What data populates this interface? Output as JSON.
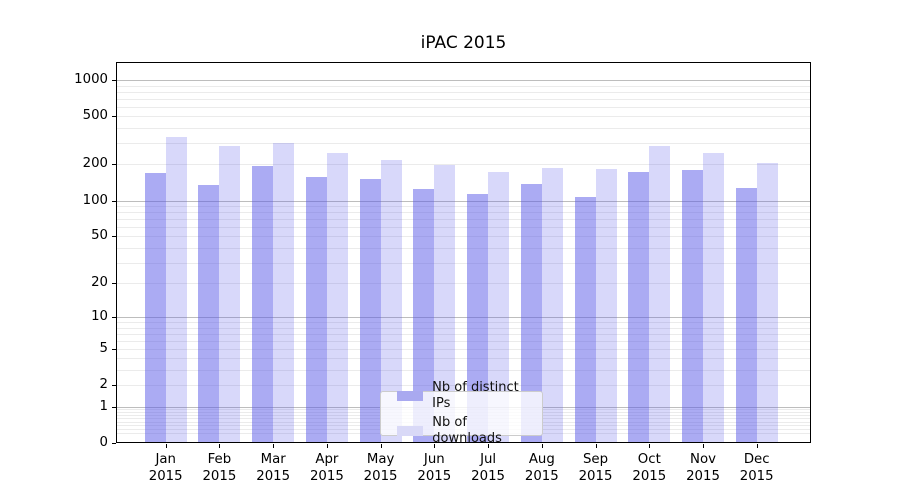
{
  "title": "iPAC 2015",
  "legend": {
    "items": [
      {
        "label": "Nb of distinct IPs",
        "color": "#a9a9f0"
      },
      {
        "label": "Nb of downloads",
        "color": "#d9d9f7"
      }
    ]
  },
  "axes": {
    "y_tick_labels": [
      "0",
      "1",
      "2",
      "5",
      "10",
      "20",
      "50",
      "100",
      "200",
      "500",
      "1000"
    ],
    "x_months": [
      "Jan",
      "Feb",
      "Mar",
      "Apr",
      "May",
      "Jun",
      "Jul",
      "Aug",
      "Sep",
      "Oct",
      "Nov",
      "Dec"
    ],
    "x_year": "2015"
  },
  "colors": {
    "bar_distinct_ips_fill": "rgba(88,88,232,0.5)",
    "bar_downloads_fill": "rgba(88,88,232,0.23)",
    "grid_major": "#bdbdbd",
    "grid_minor": "#ebebeb"
  },
  "chart_data": {
    "type": "bar",
    "title": "iPAC 2015",
    "categories": [
      "Jan 2015",
      "Feb 2015",
      "Mar 2015",
      "Apr 2015",
      "May 2015",
      "Jun 2015",
      "Jul 2015",
      "Aug 2015",
      "Sep 2015",
      "Oct 2015",
      "Nov 2015",
      "Dec 2015"
    ],
    "series": [
      {
        "name": "Nb of distinct IPs",
        "values": [
          170,
          135,
          193,
          158,
          150,
          125,
          113,
          137,
          108,
          174,
          181,
          127
        ]
      },
      {
        "name": "Nb of downloads",
        "values": [
          340,
          283,
          298,
          249,
          217,
          199,
          174,
          187,
          183,
          285,
          248,
          205
        ]
      }
    ],
    "xlabel": "",
    "ylabel": "",
    "yscale": "log1p (symlog-like, linear at 0)",
    "y_ticks": [
      0,
      1,
      2,
      5,
      10,
      20,
      50,
      100,
      200,
      500,
      1000
    ],
    "ylim": [
      0,
      1400
    ],
    "grid": "horizontal major+minor, drawn under translucent bars",
    "legend_position": "lower center inside plot"
  }
}
